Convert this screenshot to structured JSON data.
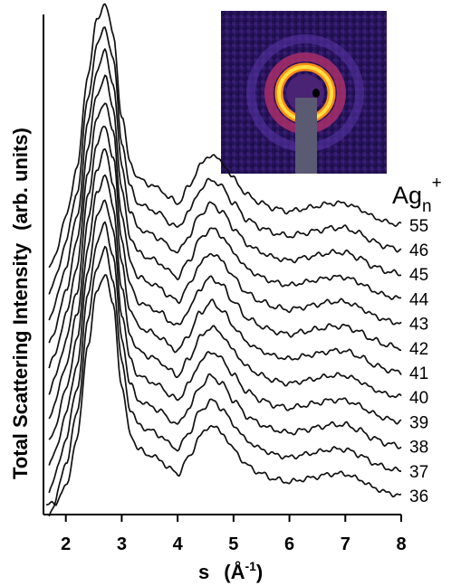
{
  "chart_data": {
    "type": "line",
    "xlabel": "s",
    "xlabel_unit": "(Å",
    "xlabel_unit_sup": "-1",
    "xlabel_unit_close": ")",
    "ylabel": "Total Scattering Intensity",
    "ylabel_unit": "(arb. units)",
    "xlim": [
      1.6,
      8
    ],
    "xticks": [
      2,
      3,
      4,
      5,
      6,
      7,
      8
    ],
    "legend_title": "Ag",
    "legend_title_sub": "n",
    "legend_title_sup": "+",
    "legend_placement": "right",
    "inset": "diffraction-pattern-image",
    "series": [
      {
        "name": "36",
        "offset": 0
      },
      {
        "name": "37",
        "offset": 1
      },
      {
        "name": "38",
        "offset": 2
      },
      {
        "name": "39",
        "offset": 3
      },
      {
        "name": "40",
        "offset": 4
      },
      {
        "name": "41",
        "offset": 5
      },
      {
        "name": "42",
        "offset": 6
      },
      {
        "name": "43",
        "offset": 7
      },
      {
        "name": "44",
        "offset": 8
      },
      {
        "name": "45",
        "offset": 9
      },
      {
        "name": "46",
        "offset": 10
      },
      {
        "name": "55",
        "offset": 11
      }
    ],
    "profile": {
      "s": [
        1.6,
        1.8,
        2.0,
        2.2,
        2.4,
        2.55,
        2.7,
        2.85,
        3.0,
        3.15,
        3.3,
        3.5,
        3.7,
        3.85,
        4.0,
        4.2,
        4.4,
        4.6,
        4.8,
        5.0,
        5.25,
        5.5,
        5.75,
        6.0,
        6.25,
        6.5,
        6.75,
        7.0,
        7.25,
        7.5,
        7.75,
        8.0
      ],
      "intensity": [
        0.0,
        0.06,
        0.35,
        1.25,
        3.0,
        3.95,
        4.3,
        3.7,
        2.2,
        1.35,
        1.05,
        0.95,
        0.85,
        0.7,
        0.6,
        0.9,
        1.3,
        1.5,
        1.35,
        1.05,
        0.75,
        0.6,
        0.5,
        0.45,
        0.5,
        0.55,
        0.6,
        0.6,
        0.5,
        0.35,
        0.25,
        0.2
      ]
    }
  }
}
